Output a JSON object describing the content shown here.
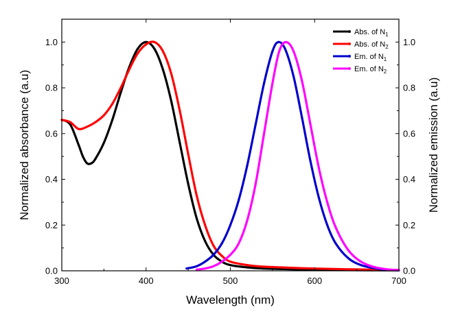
{
  "chart_data": {
    "type": "line",
    "title": "",
    "xlabel": "Wavelength (nm)",
    "ylabel": "Normalized absorbance (a.u)",
    "ylabel_right": "Normalized emission (a.u)",
    "xlim": [
      300,
      700
    ],
    "ylim": [
      0,
      1.1
    ],
    "ylim_right": [
      0,
      1.1
    ],
    "x_ticks": [
      300,
      400,
      500,
      600,
      700
    ],
    "y_ticks": [
      0.0,
      0.2,
      0.4,
      0.6,
      0.8,
      1.0
    ],
    "y_tick_labels": [
      "0.0",
      "0.2",
      "0.4",
      "0.6",
      "0.8",
      "1.0"
    ],
    "grid": false,
    "legend_position": "top-right",
    "series": [
      {
        "name": "Abs. of N",
        "subscript": "1",
        "axis": "left",
        "color": "#000000",
        "x": [
          300,
          310,
          320,
          325,
          330,
          335,
          340,
          350,
          360,
          370,
          380,
          390,
          400,
          410,
          420,
          430,
          440,
          450,
          460,
          470,
          480,
          490,
          500,
          520,
          540,
          560,
          580,
          600,
          650,
          700
        ],
        "y": [
          0.66,
          0.64,
          0.55,
          0.5,
          0.47,
          0.47,
          0.49,
          0.56,
          0.66,
          0.78,
          0.89,
          0.97,
          1.0,
          0.97,
          0.88,
          0.74,
          0.56,
          0.38,
          0.23,
          0.13,
          0.07,
          0.04,
          0.025,
          0.015,
          0.01,
          0.008,
          0.006,
          0.005,
          0.003,
          0.002
        ]
      },
      {
        "name": "Abs. of N",
        "subscript": "2",
        "axis": "left",
        "color": "#ff0000",
        "x": [
          300,
          310,
          320,
          330,
          340,
          350,
          360,
          370,
          380,
          390,
          400,
          410,
          420,
          430,
          440,
          450,
          460,
          470,
          480,
          490,
          500,
          520,
          540,
          560,
          580,
          600,
          650,
          700
        ],
        "y": [
          0.66,
          0.65,
          0.62,
          0.63,
          0.65,
          0.68,
          0.73,
          0.8,
          0.88,
          0.95,
          0.99,
          1.0,
          0.96,
          0.86,
          0.7,
          0.51,
          0.33,
          0.2,
          0.11,
          0.065,
          0.04,
          0.025,
          0.018,
          0.015,
          0.012,
          0.01,
          0.006,
          0.004
        ]
      },
      {
        "name": "Em. of N",
        "subscript": "1",
        "axis": "right",
        "color": "#0000cc",
        "x": [
          448,
          460,
          470,
          480,
          490,
          500,
          510,
          520,
          530,
          540,
          550,
          557,
          565,
          575,
          585,
          595,
          605,
          615,
          625,
          640,
          655,
          670,
          685,
          700
        ],
        "y": [
          0.01,
          0.02,
          0.04,
          0.07,
          0.12,
          0.2,
          0.31,
          0.46,
          0.64,
          0.82,
          0.96,
          1.0,
          0.97,
          0.85,
          0.67,
          0.48,
          0.32,
          0.2,
          0.12,
          0.055,
          0.025,
          0.012,
          0.005,
          0.002
        ]
      },
      {
        "name": "Em. of N",
        "subscript": "2",
        "axis": "right",
        "color": "#ff00ff",
        "x": [
          460,
          470,
          480,
          490,
          500,
          510,
          520,
          530,
          540,
          550,
          558,
          566,
          575,
          585,
          595,
          605,
          615,
          625,
          640,
          655,
          670,
          685,
          700
        ],
        "y": [
          0.005,
          0.01,
          0.02,
          0.04,
          0.07,
          0.12,
          0.22,
          0.38,
          0.6,
          0.82,
          0.96,
          1.0,
          0.96,
          0.83,
          0.64,
          0.45,
          0.3,
          0.19,
          0.09,
          0.04,
          0.017,
          0.007,
          0.003
        ]
      }
    ]
  }
}
